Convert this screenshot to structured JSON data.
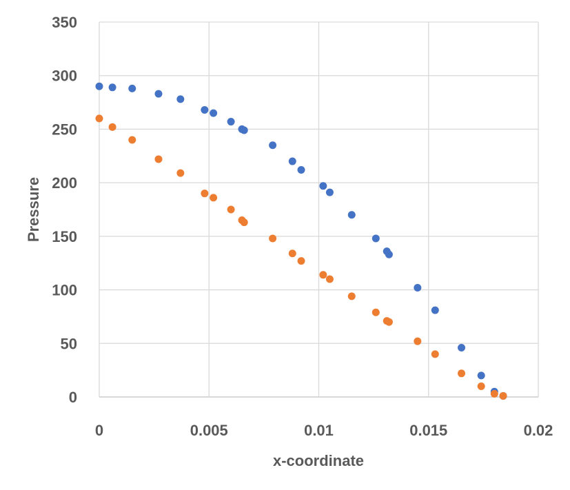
{
  "chart_data": {
    "type": "scatter",
    "title": "",
    "xlabel": "x-coordinate",
    "ylabel": "Pressure",
    "xlim": [
      0,
      0.02
    ],
    "ylim": [
      0,
      350
    ],
    "x_ticks": [
      "0",
      "0.005",
      "0.01",
      "0.015",
      "0.02"
    ],
    "y_ticks": [
      "0",
      "50",
      "100",
      "150",
      "200",
      "250",
      "300",
      "350"
    ],
    "grid": true,
    "legend": "none",
    "series": [
      {
        "color": "#4472c4",
        "points": [
          [
            0.0,
            290
          ],
          [
            0.0006,
            289
          ],
          [
            0.0015,
            288
          ],
          [
            0.0027,
            283
          ],
          [
            0.0037,
            278
          ],
          [
            0.0048,
            268
          ],
          [
            0.0052,
            265
          ],
          [
            0.006,
            257
          ],
          [
            0.0065,
            250
          ],
          [
            0.0066,
            249
          ],
          [
            0.0079,
            235
          ],
          [
            0.0088,
            220
          ],
          [
            0.0092,
            212
          ],
          [
            0.0102,
            197
          ],
          [
            0.0105,
            191
          ],
          [
            0.0115,
            170
          ],
          [
            0.0126,
            148
          ],
          [
            0.0131,
            136
          ],
          [
            0.0132,
            133
          ],
          [
            0.0145,
            102
          ],
          [
            0.0153,
            81
          ],
          [
            0.0165,
            46
          ],
          [
            0.0174,
            20
          ],
          [
            0.018,
            5
          ],
          [
            0.0184,
            1
          ]
        ]
      },
      {
        "color": "#ed7d31",
        "points": [
          [
            0.0,
            260
          ],
          [
            0.0006,
            252
          ],
          [
            0.0015,
            240
          ],
          [
            0.0027,
            222
          ],
          [
            0.0037,
            209
          ],
          [
            0.0048,
            190
          ],
          [
            0.0052,
            186
          ],
          [
            0.006,
            175
          ],
          [
            0.0065,
            165
          ],
          [
            0.0066,
            163
          ],
          [
            0.0079,
            148
          ],
          [
            0.0088,
            134
          ],
          [
            0.0092,
            127
          ],
          [
            0.0102,
            114
          ],
          [
            0.0105,
            110
          ],
          [
            0.0115,
            94
          ],
          [
            0.0126,
            79
          ],
          [
            0.0131,
            71
          ],
          [
            0.0132,
            70
          ],
          [
            0.0145,
            52
          ],
          [
            0.0153,
            40
          ],
          [
            0.0165,
            22
          ],
          [
            0.0174,
            10
          ],
          [
            0.018,
            3
          ],
          [
            0.0184,
            1
          ]
        ]
      }
    ]
  }
}
